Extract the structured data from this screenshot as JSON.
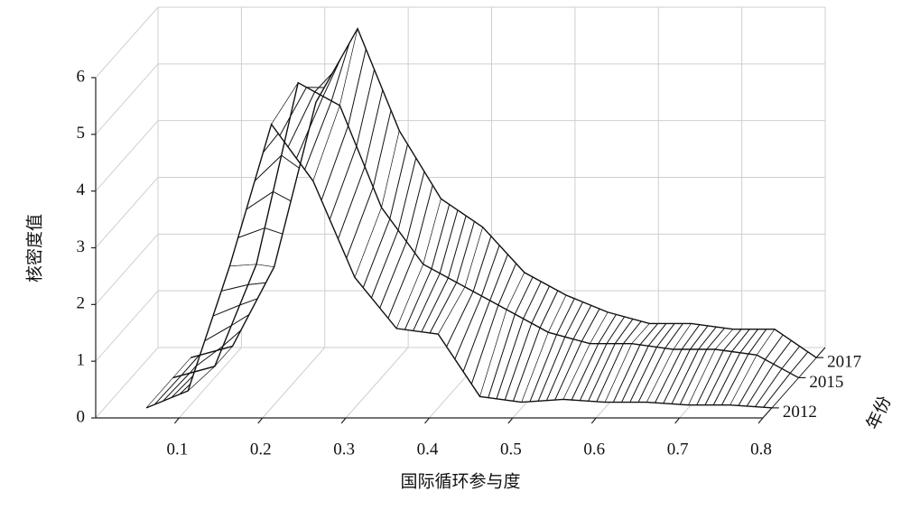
{
  "chart_data": {
    "type": "surface3d",
    "xlabel": "国际循环参与度",
    "ylabel": "核密度值",
    "zlabel": "年份",
    "x": [
      0.05,
      0.1,
      0.15,
      0.2,
      0.25,
      0.3,
      0.35,
      0.4,
      0.45,
      0.5,
      0.55,
      0.6,
      0.65,
      0.7,
      0.75,
      0.8
    ],
    "series": [
      {
        "name": "2012",
        "values": [
          0,
          0.3,
          2.5,
          5.0,
          4.0,
          2.3,
          1.4,
          1.3,
          0.2,
          0.1,
          0.15,
          0.1,
          0.1,
          0.05,
          0.05,
          0
        ]
      },
      {
        "name": "2015",
        "values": [
          0,
          0.2,
          2.0,
          5.2,
          4.8,
          3.0,
          2.0,
          1.6,
          1.2,
          0.8,
          0.6,
          0.6,
          0.5,
          0.5,
          0.4,
          0
        ]
      },
      {
        "name": "2017",
        "values": [
          0,
          0.2,
          1.6,
          4.5,
          5.8,
          4.0,
          2.8,
          2.3,
          1.5,
          1.1,
          0.8,
          0.6,
          0.6,
          0.5,
          0.5,
          0
        ]
      }
    ],
    "z": [
      2012,
      2015,
      2017
    ],
    "xlim": [
      0,
      0.8
    ],
    "xticks": [
      0.1,
      0.2,
      0.3,
      0.4,
      0.5,
      0.6,
      0.7,
      0.8
    ],
    "ylim": [
      0,
      6
    ],
    "yticks": [
      0,
      1,
      2,
      3,
      4,
      5,
      6
    ],
    "zlim": [
      2011,
      2018
    ],
    "zticks": [
      2012,
      2015,
      2017
    ],
    "grid": true,
    "color": "#111111"
  }
}
